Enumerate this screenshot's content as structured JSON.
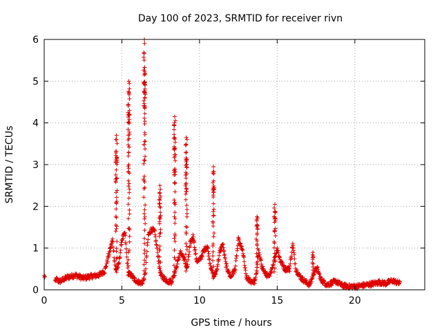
{
  "chart_data": {
    "type": "scatter",
    "title": "Day 100 of 2023, SRMTID for receiver rivn",
    "xlabel": "GPS time / hours",
    "ylabel": "SRMTID / TECUs",
    "xlim": [
      0,
      24.5
    ],
    "ylim": [
      0,
      6
    ],
    "xticks": [
      0,
      5,
      10,
      15,
      20
    ],
    "yticks": [
      0,
      1,
      2,
      3,
      4,
      5,
      6
    ],
    "xtick_labels": [
      "0",
      "5",
      "10",
      "15",
      "20"
    ],
    "ytick_labels": [
      "0",
      "1",
      "2",
      "3",
      "4",
      "5",
      "6"
    ],
    "grid": true,
    "marker": "+",
    "color": "#dd0000",
    "series": [
      {
        "name": "SRMTID",
        "baseline": [
          [
            0.0,
            0.33
          ],
          [
            0.6,
            0.0
          ],
          [
            0.75,
            0.25
          ],
          [
            1.0,
            0.2
          ],
          [
            1.5,
            0.3
          ],
          [
            2.0,
            0.35
          ],
          [
            2.5,
            0.28
          ],
          [
            3.0,
            0.32
          ],
          [
            3.5,
            0.35
          ],
          [
            3.9,
            0.45
          ],
          [
            4.2,
            0.9
          ],
          [
            4.4,
            1.2
          ],
          [
            4.6,
            0.45
          ],
          [
            4.8,
            0.6
          ],
          [
            5.0,
            1.2
          ],
          [
            5.2,
            1.35
          ],
          [
            5.4,
            0.4
          ],
          [
            5.6,
            0.35
          ],
          [
            5.8,
            0.25
          ],
          [
            6.0,
            0.2
          ],
          [
            6.3,
            0.15
          ],
          [
            6.5,
            0.35
          ],
          [
            6.7,
            1.3
          ],
          [
            6.9,
            1.45
          ],
          [
            7.1,
            1.4
          ],
          [
            7.3,
            0.9
          ],
          [
            7.5,
            0.35
          ],
          [
            7.8,
            0.25
          ],
          [
            8.0,
            0.2
          ],
          [
            8.2,
            0.2
          ],
          [
            8.4,
            0.4
          ],
          [
            8.6,
            0.7
          ],
          [
            8.8,
            0.9
          ],
          [
            9.0,
            0.75
          ],
          [
            9.2,
            0.5
          ],
          [
            9.4,
            1.1
          ],
          [
            9.6,
            1.3
          ],
          [
            9.8,
            0.7
          ],
          [
            10.0,
            0.7
          ],
          [
            10.3,
            0.95
          ],
          [
            10.5,
            1.05
          ],
          [
            10.7,
            0.6
          ],
          [
            10.9,
            0.3
          ],
          [
            11.1,
            0.45
          ],
          [
            11.3,
            0.9
          ],
          [
            11.5,
            1.1
          ],
          [
            11.7,
            0.6
          ],
          [
            12.0,
            0.3
          ],
          [
            12.3,
            0.5
          ],
          [
            12.5,
            1.2
          ],
          [
            12.8,
            0.9
          ],
          [
            13.0,
            0.3
          ],
          [
            13.3,
            0.2
          ],
          [
            13.6,
            0.2
          ],
          [
            13.8,
            0.9
          ],
          [
            14.0,
            0.6
          ],
          [
            14.2,
            0.4
          ],
          [
            14.5,
            0.3
          ],
          [
            14.8,
            0.7
          ],
          [
            15.0,
            1.0
          ],
          [
            15.2,
            0.7
          ],
          [
            15.5,
            0.5
          ],
          [
            15.8,
            0.5
          ],
          [
            16.0,
            1.1
          ],
          [
            16.2,
            0.5
          ],
          [
            16.5,
            0.3
          ],
          [
            16.8,
            0.2
          ],
          [
            17.1,
            0.12
          ],
          [
            17.4,
            0.45
          ],
          [
            17.6,
            0.5
          ],
          [
            17.8,
            0.25
          ],
          [
            18.2,
            0.12
          ],
          [
            18.6,
            0.18
          ],
          [
            18.8,
            0.2
          ],
          [
            19.2,
            0.1
          ],
          [
            19.6,
            0.08
          ],
          [
            20.0,
            0.08
          ],
          [
            20.4,
            0.1
          ],
          [
            20.8,
            0.12
          ],
          [
            21.2,
            0.15
          ],
          [
            21.6,
            0.18
          ],
          [
            22.0,
            0.15
          ],
          [
            22.4,
            0.22
          ],
          [
            22.9,
            0.15
          ]
        ],
        "spikes": [
          {
            "x": 4.65,
            "peak": 3.7
          },
          {
            "x": 5.45,
            "peak": 5.0
          },
          {
            "x": 6.45,
            "peak": 6.0
          },
          {
            "x": 7.45,
            "peak": 2.5
          },
          {
            "x": 8.4,
            "peak": 4.15
          },
          {
            "x": 9.15,
            "peak": 3.65
          },
          {
            "x": 10.9,
            "peak": 2.95
          },
          {
            "x": 13.7,
            "peak": 1.75
          },
          {
            "x": 14.85,
            "peak": 2.05
          },
          {
            "x": 17.3,
            "peak": 0.9
          }
        ]
      }
    ]
  }
}
